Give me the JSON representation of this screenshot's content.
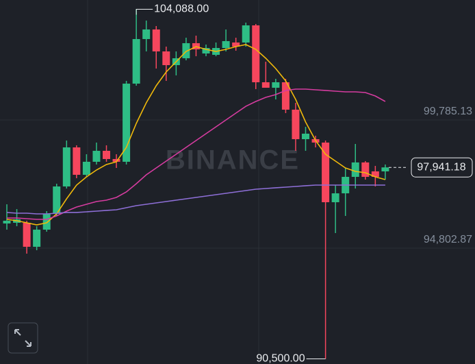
{
  "chart_data": {
    "type": "candlestick",
    "watermark": "BINANCE",
    "ylim": [
      90301,
      104447
    ],
    "yticks": [
      {
        "value": 99785.13,
        "label": "99,785.13"
      },
      {
        "value": 94802.87,
        "label": "94,802.87"
      }
    ],
    "up_color": "#2ebd85",
    "down_color": "#f6465d",
    "open": [
      95762,
      95789,
      95789,
      94856,
      95522,
      96135,
      97201,
      98719,
      97654,
      98160,
      98586,
      98267,
      98160,
      101197,
      102929,
      103302,
      102449,
      101916,
      102183,
      102769,
      102369,
      102316,
      102582,
      102795,
      102795,
      103461,
      101250,
      101037,
      101250,
      100185,
      99039,
      99039,
      98906,
      96588,
      96934,
      97574,
      98134,
      97787,
      97787
    ],
    "high": [
      96508,
      96322,
      95869,
      95656,
      96242,
      97307,
      98986,
      98800,
      98453,
      98906,
      98800,
      98453,
      101304,
      104088,
      103648,
      103435,
      102636,
      102449,
      102982,
      103062,
      102716,
      102795,
      103302,
      102982,
      103568,
      103515,
      102049,
      101383,
      101383,
      100451,
      99519,
      99172,
      98986,
      97254,
      97920,
      98853,
      98187,
      98000,
      98054
    ],
    "low": [
      95522,
      95656,
      94590,
      94723,
      95443,
      96055,
      97121,
      97521,
      97574,
      98054,
      98160,
      97920,
      98054,
      101117,
      102449,
      101783,
      101304,
      101517,
      102103,
      102262,
      102262,
      102262,
      102449,
      102476,
      102636,
      100984,
      101037,
      100584,
      100051,
      98586,
      98586,
      98719,
      90500,
      95389,
      96055,
      97121,
      97467,
      97201,
      97467
    ],
    "close": [
      95869,
      95922,
      94856,
      95522,
      96135,
      97201,
      98719,
      97654,
      98160,
      98586,
      98267,
      98160,
      101197,
      102929,
      103302,
      102449,
      101916,
      102183,
      102769,
      102529,
      102582,
      102582,
      102849,
      102636,
      103461,
      101250,
      101037,
      101250,
      100185,
      99039,
      99252,
      98906,
      96588,
      96934,
      97574,
      98134,
      97574,
      97574,
      97941.18
    ],
    "lines": [
      {
        "color": "#f0b90b",
        "values": [
          95922,
          95869,
          95789,
          95709,
          95789,
          96135,
          96721,
          97254,
          97574,
          97840,
          98054,
          98160,
          98719,
          99652,
          100451,
          101117,
          101650,
          102049,
          102449,
          102636,
          102529,
          102449,
          102529,
          102636,
          102716,
          102529,
          102183,
          101783,
          101304,
          100584,
          99705,
          98986,
          98453,
          98187,
          97920,
          97787,
          97734,
          97574,
          97467
        ]
      },
      {
        "color": "#d63ca0",
        "values": [
          95975,
          95975,
          95949,
          95922,
          95922,
          96055,
          96242,
          96402,
          96508,
          96615,
          96668,
          96775,
          96988,
          97307,
          97654,
          97920,
          98187,
          98453,
          98719,
          98986,
          99252,
          99519,
          99785,
          100051,
          100317,
          100504,
          100664,
          100771,
          100931,
          100984,
          100984,
          100957,
          100931,
          100904,
          100877,
          100877,
          100851,
          100717,
          100504
        ]
      },
      {
        "color": "#8e6fd8",
        "values": [
          96189,
          96162,
          96162,
          96135,
          96135,
          96162,
          96189,
          96189,
          96215,
          96242,
          96269,
          96295,
          96375,
          96455,
          96508,
          96562,
          96615,
          96668,
          96721,
          96775,
          96828,
          96881,
          96934,
          96988,
          97041,
          97094,
          97121,
          97148,
          97174,
          97201,
          97228,
          97254,
          97254,
          97254,
          97254,
          97254,
          97254,
          97254,
          97254
        ]
      }
    ],
    "high_marker": {
      "value": 104088,
      "label": "104,088.00",
      "index": 13
    },
    "low_marker": {
      "value": 90500,
      "label": "90,500.00",
      "index": 32
    },
    "last_price": {
      "value": 97941.18,
      "label": "97,941.18"
    }
  }
}
